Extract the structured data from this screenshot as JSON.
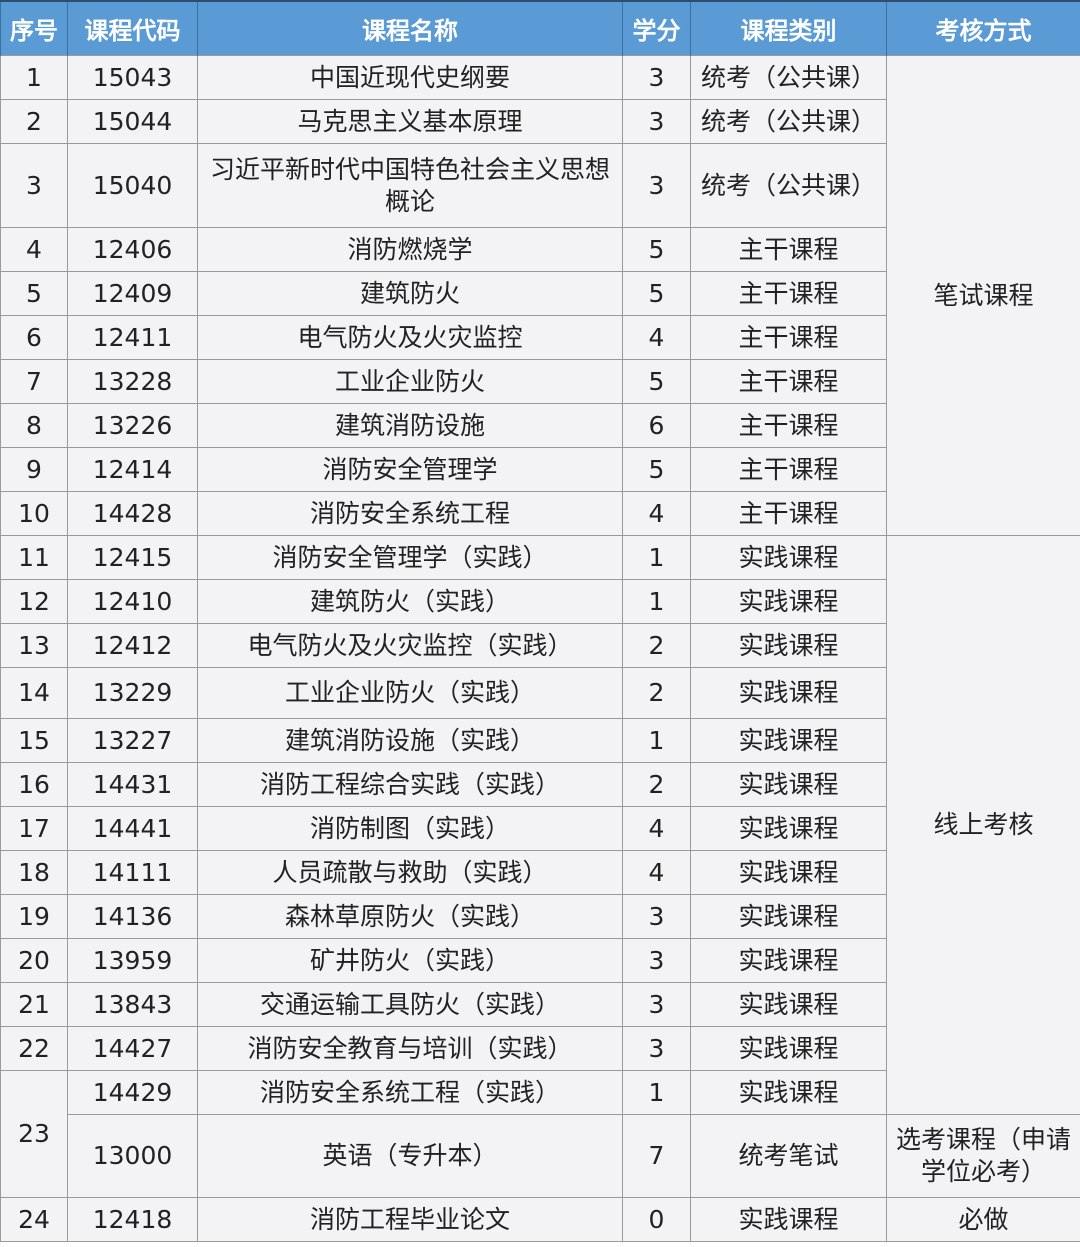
{
  "header": {
    "no": "序号",
    "code": "课程代码",
    "name": "课程名称",
    "credit": "学分",
    "category": "课程类别",
    "exam": "考核方式"
  },
  "colors": {
    "header_bg": "#5b9bd5",
    "header_text": "#ffffff",
    "body_bg": "#f3f2f4"
  },
  "rows": [
    {
      "no": "1",
      "code": "15043",
      "name": "中国近现代史纲要",
      "credit": "3",
      "category": "统考（公共课）",
      "exam": "笔试课程"
    },
    {
      "no": "2",
      "code": "15044",
      "name": "马克思主义基本原理",
      "credit": "3",
      "category": "统考（公共课）",
      "exam": "笔试课程"
    },
    {
      "no": "3",
      "code": "15040",
      "name": "习近平新时代中国特色社会主义思想概论",
      "credit": "3",
      "category": "统考（公共课）",
      "exam": "笔试课程"
    },
    {
      "no": "4",
      "code": "12406",
      "name": "消防燃烧学",
      "credit": "5",
      "category": "主干课程",
      "exam": "笔试课程"
    },
    {
      "no": "5",
      "code": "12409",
      "name": "建筑防火",
      "credit": "5",
      "category": "主干课程",
      "exam": "笔试课程"
    },
    {
      "no": "6",
      "code": "12411",
      "name": "电气防火及火灾监控",
      "credit": "4",
      "category": "主干课程",
      "exam": "笔试课程"
    },
    {
      "no": "7",
      "code": "13228",
      "name": "工业企业防火",
      "credit": "5",
      "category": "主干课程",
      "exam": "笔试课程"
    },
    {
      "no": "8",
      "code": "13226",
      "name": "建筑消防设施",
      "credit": "6",
      "category": "主干课程",
      "exam": "笔试课程"
    },
    {
      "no": "9",
      "code": "12414",
      "name": "消防安全管理学",
      "credit": "5",
      "category": "主干课程",
      "exam": "笔试课程"
    },
    {
      "no": "10",
      "code": "14428",
      "name": "消防安全系统工程",
      "credit": "4",
      "category": "主干课程",
      "exam": "笔试课程"
    },
    {
      "no": "11",
      "code": "12415",
      "name": "消防安全管理学（实践）",
      "credit": "1",
      "category": "实践课程",
      "exam": "线上考核"
    },
    {
      "no": "12",
      "code": "12410",
      "name": "建筑防火（实践）",
      "credit": "1",
      "category": "实践课程",
      "exam": "线上考核"
    },
    {
      "no": "13",
      "code": "12412",
      "name": "电气防火及火灾监控（实践）",
      "credit": "2",
      "category": "实践课程",
      "exam": "线上考核"
    },
    {
      "no": "14",
      "code": "13229",
      "name": "工业企业防火（实践）",
      "credit": "2",
      "category": "实践课程",
      "exam": "线上考核"
    },
    {
      "no": "15",
      "code": "13227",
      "name": "建筑消防设施（实践）",
      "credit": "1",
      "category": "实践课程",
      "exam": "线上考核"
    },
    {
      "no": "16",
      "code": "14431",
      "name": "消防工程综合实践（实践）",
      "credit": "2",
      "category": "实践课程",
      "exam": "线上考核"
    },
    {
      "no": "17",
      "code": "14441",
      "name": "消防制图（实践）",
      "credit": "4",
      "category": "实践课程",
      "exam": "线上考核"
    },
    {
      "no": "18",
      "code": "14111",
      "name": "人员疏散与救助（实践）",
      "credit": "4",
      "category": "实践课程",
      "exam": "线上考核"
    },
    {
      "no": "19",
      "code": "14136",
      "name": "森林草原防火（实践）",
      "credit": "3",
      "category": "实践课程",
      "exam": "线上考核"
    },
    {
      "no": "20",
      "code": "13959",
      "name": "矿井防火（实践）",
      "credit": "3",
      "category": "实践课程",
      "exam": "线上考核"
    },
    {
      "no": "21",
      "code": "13843",
      "name": "交通运输工具防火（实践）",
      "credit": "3",
      "category": "实践课程",
      "exam": "线上考核"
    },
    {
      "no": "22",
      "code": "14427",
      "name": "消防安全教育与培训（实践）",
      "credit": "3",
      "category": "实践课程",
      "exam": "线上考核"
    },
    {
      "no": "23",
      "code": "14429",
      "name": "消防安全系统工程（实践）",
      "credit": "1",
      "category": "实践课程",
      "exam": "线上考核"
    },
    {
      "no": "23",
      "code": "13000",
      "name": "英语（专升本）",
      "credit": "7",
      "category": "统考笔试",
      "exam": "选考课程（申请学位必考）"
    },
    {
      "no": "24",
      "code": "12418",
      "name": "消防工程毕业论文",
      "credit": "0",
      "category": "实践课程",
      "exam": "必做"
    }
  ]
}
